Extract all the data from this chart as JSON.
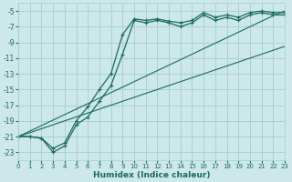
{
  "xlabel": "Humidex (Indice chaleur)",
  "bg_color": "#cce8e8",
  "grid_color": "#aacccc",
  "line_color": "#1a6b5a",
  "x_values": [
    0,
    1,
    2,
    3,
    4,
    5,
    6,
    7,
    8,
    9,
    10,
    11,
    12,
    13,
    14,
    15,
    16,
    17,
    18,
    19,
    20,
    21,
    22,
    23
  ],
  "curve1": [
    -21,
    -21,
    -21.2,
    -22.5,
    -21.8,
    -19.0,
    -17.2,
    -15.0,
    -13.0,
    -8.0,
    -6.0,
    -6.2,
    -6.0,
    -6.3,
    -6.5,
    -6.2,
    -5.2,
    -5.8,
    -5.5,
    -5.8,
    -5.2,
    -5.0,
    -5.2,
    -5.2
  ],
  "curve2": [
    -21,
    -21,
    -21.2,
    -23.0,
    -22.2,
    -19.5,
    -18.5,
    -16.5,
    -14.5,
    -10.5,
    -6.2,
    -6.5,
    -6.2,
    -6.5,
    -7.0,
    -6.5,
    -5.5,
    -6.2,
    -5.8,
    -6.2,
    -5.5,
    -5.2,
    -5.5,
    -5.5
  ],
  "diag1": [
    -21,
    -20.3,
    -19.6,
    -18.9,
    -18.2,
    -17.5,
    -16.8,
    -16.1,
    -15.4,
    -14.7,
    -14.0,
    -13.3,
    -12.6,
    -11.9,
    -11.2,
    -10.5,
    -9.8,
    -9.1,
    -8.4,
    -7.7,
    -7.0,
    -6.3,
    -5.6,
    -5.0
  ],
  "diag2": [
    -21,
    -20.5,
    -20.0,
    -19.5,
    -19.0,
    -18.5,
    -18.0,
    -17.5,
    -17.0,
    -16.5,
    -16.0,
    -15.5,
    -15.0,
    -14.5,
    -14.0,
    -13.5,
    -13.0,
    -12.5,
    -12.0,
    -11.5,
    -11.0,
    -10.5,
    -10.0,
    -9.5
  ],
  "ylim": [
    -24,
    -4
  ],
  "xlim": [
    0,
    23
  ],
  "yticks": [
    -5,
    -7,
    -9,
    -11,
    -13,
    -15,
    -17,
    -19,
    -21,
    -23
  ],
  "xticks": [
    0,
    1,
    2,
    3,
    4,
    5,
    6,
    7,
    8,
    9,
    10,
    11,
    12,
    13,
    14,
    15,
    16,
    17,
    18,
    19,
    20,
    21,
    22,
    23
  ]
}
